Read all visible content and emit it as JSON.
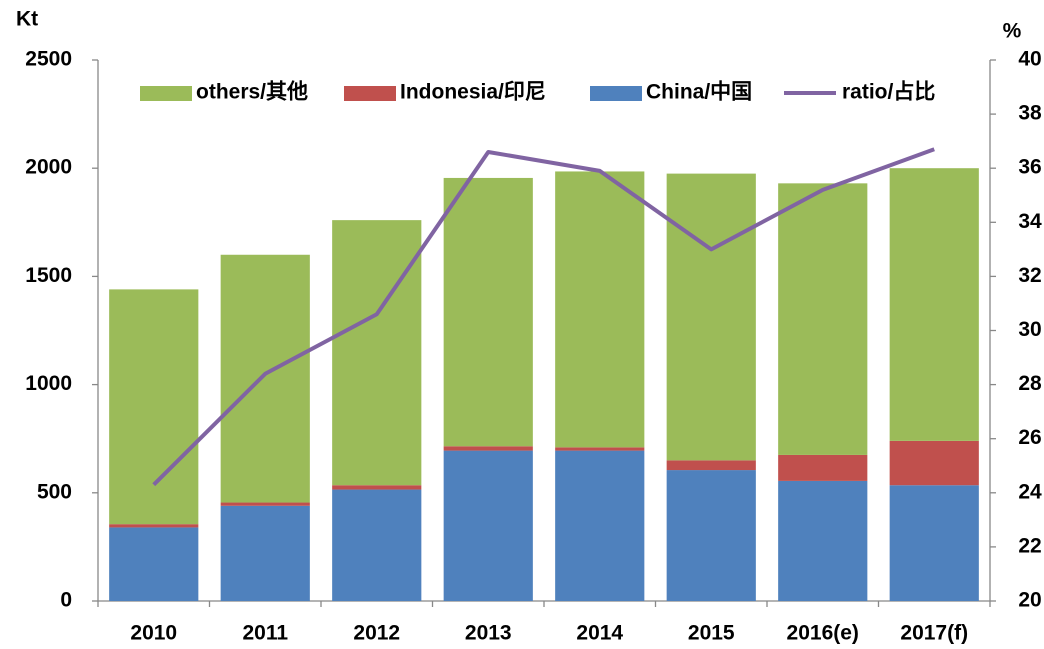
{
  "chart_data": {
    "type": "bar",
    "stacked": true,
    "y_label": "Kt",
    "y2_label": "%",
    "categories": [
      "2010",
      "2011",
      "2012",
      "2013",
      "2014",
      "2015",
      "2016(e)",
      "2017(f)"
    ],
    "series": [
      {
        "name": "others/其他",
        "color": "#9bbb59",
        "type": "bar",
        "values": [
          1085,
          1145,
          1225,
          1240,
          1275,
          1325,
          1255,
          1260
        ]
      },
      {
        "name": "Indonesia/印尼",
        "color": "#c0504d",
        "type": "bar",
        "values": [
          15,
          15,
          20,
          20,
          15,
          45,
          120,
          205
        ]
      },
      {
        "name": "China/中国",
        "color": "#4f81bd",
        "type": "bar",
        "values": [
          340,
          440,
          515,
          695,
          695,
          605,
          555,
          535
        ]
      },
      {
        "name": "ratio/占比",
        "color": "#8064a2",
        "type": "line",
        "axis": "y2",
        "values": [
          24.3,
          28.4,
          30.6,
          36.6,
          35.9,
          33.0,
          35.2,
          36.7
        ]
      }
    ],
    "ylim": [
      0,
      2500
    ],
    "yticks": [
      0,
      500,
      1000,
      1500,
      2000,
      2500
    ],
    "y2lim": [
      20,
      40
    ],
    "y2ticks": [
      20,
      22,
      24,
      26,
      28,
      30,
      32,
      34,
      36,
      38,
      40
    ],
    "legend": "top"
  }
}
